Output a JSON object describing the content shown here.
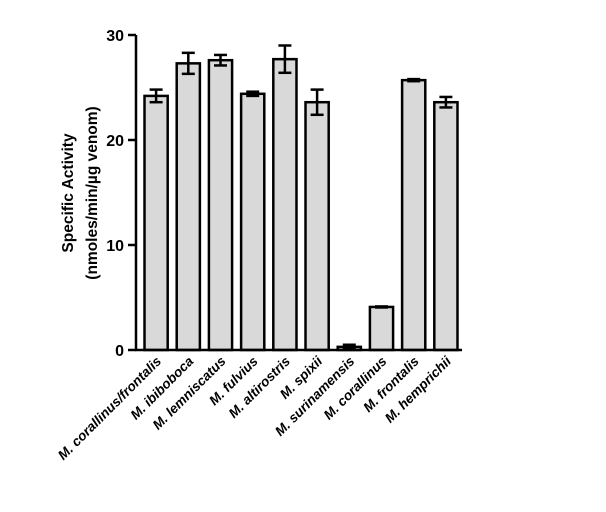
{
  "chart_data": {
    "type": "bar",
    "ylabel_line1": "Specific Activity",
    "ylabel_line2": "(nmoles/min/µg venom)",
    "ylim": [
      0,
      30
    ],
    "yticks": [
      "0",
      "10",
      "20",
      "30"
    ],
    "categories": [
      "M. corallinus/frontalis",
      "M. ibiboboca",
      "M. lemniscatus",
      "M. fulvius",
      "M. altirostris",
      "M. spixii",
      "M. surinamensis",
      "M. corallinus",
      "M. frontalis",
      "M. hemprichii"
    ],
    "values": [
      24.2,
      27.3,
      27.6,
      24.4,
      27.7,
      23.6,
      0.3,
      4.1,
      25.7,
      23.6
    ],
    "errors": [
      0.6,
      1.0,
      0.5,
      0.2,
      1.3,
      1.2,
      0.2,
      0.05,
      0.1,
      0.5
    ],
    "bar_color": "#d9d9d9",
    "edge_color": "#000000"
  }
}
